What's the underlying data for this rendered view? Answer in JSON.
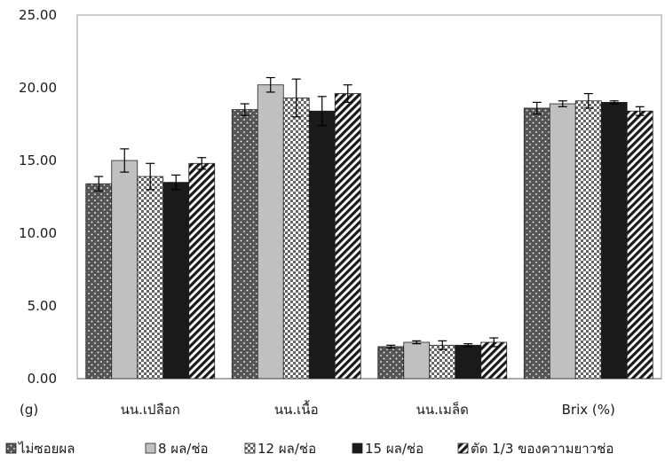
{
  "chart_data": {
    "type": "bar",
    "unit_label": "(g)",
    "categories": [
      "นน.เปลือก",
      "นน.เนื้อ",
      "นน.เมล็ด",
      "Brix (%)"
    ],
    "ylim": [
      0,
      25
    ],
    "yticks": [
      "0.00",
      "5.00",
      "10.00",
      "15.00",
      "20.00",
      "25.00"
    ],
    "grid": false,
    "legend_position": "bottom",
    "series": [
      {
        "name": "ไม่ซอยผล",
        "values": [
          13.4,
          18.5,
          2.2,
          18.6
        ],
        "errors": [
          0.5,
          0.4,
          0.1,
          0.4
        ],
        "pattern": "dots",
        "color": "#555555"
      },
      {
        "name": "8 ผล/ช่อ",
        "values": [
          15.0,
          20.2,
          2.5,
          18.9
        ],
        "errors": [
          0.8,
          0.5,
          0.1,
          0.2
        ],
        "pattern": "solid",
        "color": "#c0c0c0"
      },
      {
        "name": "12 ผล/ช่อ",
        "values": [
          13.9,
          19.3,
          2.3,
          19.1
        ],
        "errors": [
          0.9,
          1.3,
          0.3,
          0.5
        ],
        "pattern": "checker",
        "color": "#ffffff"
      },
      {
        "name": "15 ผล/ช่อ",
        "values": [
          13.5,
          18.4,
          2.3,
          19.0
        ],
        "errors": [
          0.5,
          1.0,
          0.1,
          0.1
        ],
        "pattern": "solid",
        "color": "#1a1a1a"
      },
      {
        "name": "ตัด 1/3 ของความยาวช่อ",
        "values": [
          14.8,
          19.6,
          2.5,
          18.4
        ],
        "errors": [
          0.4,
          0.6,
          0.3,
          0.3
        ],
        "pattern": "diagonal",
        "color": "#222222"
      }
    ]
  }
}
